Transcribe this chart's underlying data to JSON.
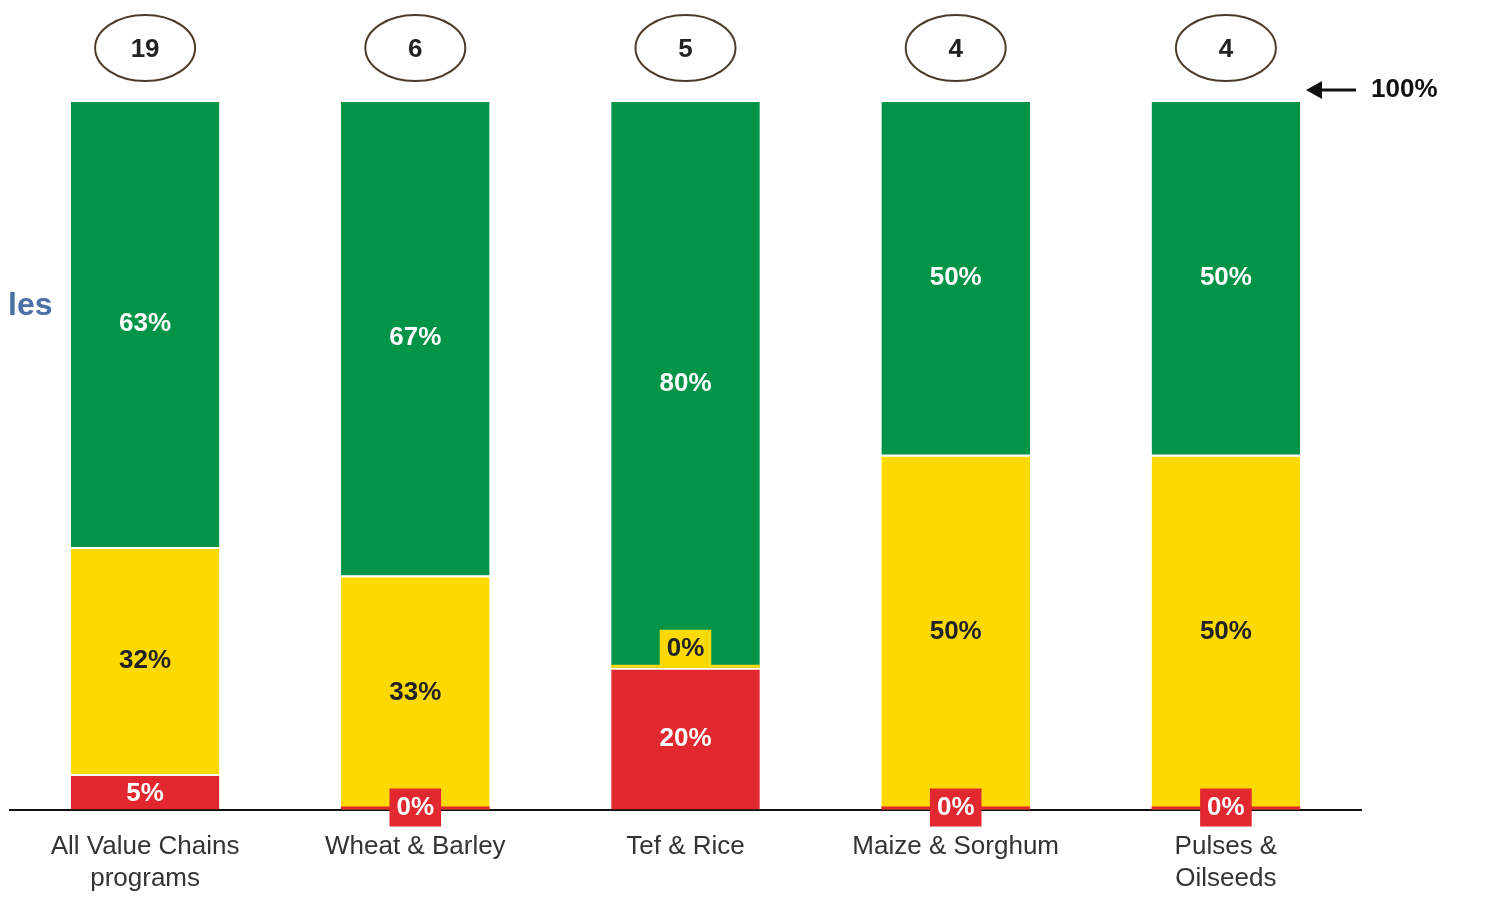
{
  "chart_data": {
    "type": "bar",
    "stacked": true,
    "categories": [
      "All Value Chains programs",
      "Wheat & Barley",
      "Tef & Rice",
      "Maize & Sorghum",
      "Pulses & Oilseeds"
    ],
    "series": [
      {
        "color": "#e0282e",
        "values": [
          5,
          0,
          20,
          0,
          0
        ],
        "value_labels": [
          "5%",
          "0%",
          "20%",
          "0%",
          "0%"
        ]
      },
      {
        "color": "#fcd900",
        "values": [
          32,
          33,
          0,
          50,
          50
        ],
        "value_labels": [
          "32%",
          "33%",
          "0%",
          "50%",
          "50%"
        ]
      },
      {
        "color": "#039447",
        "values": [
          63,
          67,
          80,
          50,
          50
        ],
        "value_labels": [
          "63%",
          "67%",
          "80%",
          "50%",
          "50%"
        ]
      }
    ],
    "annotations": [
      "les",
      "19",
      "6",
      "5",
      "4",
      "4",
      "100%"
    ],
    "grid": false,
    "legend": false
  }
}
